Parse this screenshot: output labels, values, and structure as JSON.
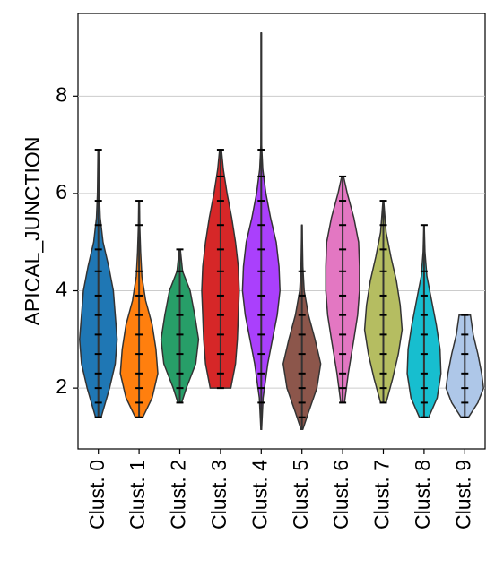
{
  "chart_data": {
    "type": "violin",
    "ylabel": "APICAL_JUNCTION",
    "categories": [
      "Clust. 0",
      "Clust. 1",
      "Clust. 2",
      "Clust. 3",
      "Clust. 4",
      "Clust. 5",
      "Clust. 6",
      "Clust. 7",
      "Clust. 8",
      "Clust. 9"
    ],
    "ylim": [
      0.75,
      9.7
    ],
    "yticks": [
      2,
      4,
      6,
      8
    ],
    "grid": true,
    "violins": [
      {
        "color": "#1f77b4",
        "levels": [
          1.4,
          2,
          2.5,
          3,
          3.5,
          4,
          4.5,
          5,
          5.5,
          6,
          6.9
        ],
        "density": [
          0.15,
          0.6,
          0.9,
          1.0,
          0.9,
          0.8,
          0.55,
          0.25,
          0.1,
          0.05,
          0.02
        ],
        "points": [
          1.4,
          1.7,
          2.0,
          2.3,
          2.7,
          3.1,
          3.5,
          3.9,
          4.4,
          4.85,
          5.35,
          5.85,
          6.9
        ]
      },
      {
        "color": "#ff7f0e",
        "levels": [
          1.4,
          1.8,
          2.3,
          2.8,
          3.3,
          3.8,
          4.3,
          4.8,
          5.3,
          5.85
        ],
        "density": [
          0.2,
          0.7,
          1.0,
          0.9,
          0.7,
          0.35,
          0.15,
          0.08,
          0.04,
          0.02
        ],
        "points": [
          1.4,
          1.7,
          2.0,
          2.3,
          2.7,
          3.1,
          3.5,
          3.9,
          4.4,
          5.35,
          5.85
        ]
      },
      {
        "color": "#279e68",
        "levels": [
          1.7,
          2.0,
          2.5,
          3.0,
          3.5,
          4.0,
          4.4,
          4.85
        ],
        "density": [
          0.1,
          0.35,
          0.85,
          1.0,
          0.8,
          0.55,
          0.15,
          0.03
        ],
        "points": [
          1.7,
          2.0,
          2.3,
          2.7,
          3.1,
          3.5,
          3.9,
          4.4,
          4.85
        ]
      },
      {
        "color": "#d62728",
        "levels": [
          2.0,
          2.5,
          3,
          3.5,
          4,
          4.5,
          5,
          5.5,
          6,
          6.5,
          6.9
        ],
        "density": [
          0.55,
          0.8,
          0.9,
          0.95,
          1.0,
          0.95,
          0.8,
          0.6,
          0.35,
          0.15,
          0.05
        ],
        "points": [
          2.0,
          2.3,
          2.7,
          3.1,
          3.5,
          3.9,
          4.4,
          4.85,
          5.35,
          5.85,
          6.35,
          6.9
        ]
      },
      {
        "color": "#aa40fc",
        "levels": [
          1.15,
          1.8,
          2.5,
          3,
          3.5,
          4,
          4.5,
          5,
          5.5,
          6,
          6.5,
          7,
          8,
          9.3
        ],
        "density": [
          0.02,
          0.1,
          0.35,
          0.6,
          0.85,
          1.0,
          0.95,
          0.8,
          0.5,
          0.25,
          0.08,
          0.02,
          0.01,
          0.01
        ],
        "points": [
          1.7,
          2.0,
          2.3,
          2.7,
          3.1,
          3.5,
          3.9,
          4.4,
          4.85,
          5.35,
          5.85,
          6.35,
          6.9
        ]
      },
      {
        "color": "#8c564b",
        "levels": [
          1.15,
          1.5,
          2,
          2.5,
          3,
          3.5,
          4,
          4.5,
          5.35
        ],
        "density": [
          0.05,
          0.35,
          0.8,
          1.0,
          0.7,
          0.35,
          0.12,
          0.05,
          0.01
        ],
        "points": [
          1.4,
          1.7,
          2.0,
          2.3,
          2.7,
          3.1,
          3.5,
          3.9,
          4.4
        ]
      },
      {
        "color": "#e377c2",
        "levels": [
          1.7,
          2.3,
          3,
          3.5,
          4,
          4.5,
          5,
          5.5,
          6,
          6.35
        ],
        "density": [
          0.1,
          0.3,
          0.6,
          0.8,
          0.9,
          0.9,
          0.85,
          0.6,
          0.25,
          0.05
        ],
        "points": [
          1.7,
          2.0,
          2.3,
          2.7,
          3.1,
          3.5,
          3.9,
          4.4,
          4.85,
          5.35,
          5.85,
          6.35
        ]
      },
      {
        "color": "#b5bd61",
        "levels": [
          1.7,
          2.2,
          2.7,
          3.2,
          3.7,
          4.2,
          4.7,
          5.2,
          5.85
        ],
        "density": [
          0.15,
          0.5,
          0.8,
          1.0,
          0.9,
          0.7,
          0.4,
          0.15,
          0.02
        ],
        "points": [
          1.7,
          2.0,
          2.3,
          2.7,
          3.1,
          3.5,
          3.9,
          4.4,
          4.85,
          5.35,
          5.85
        ]
      },
      {
        "color": "#17becf",
        "levels": [
          1.4,
          1.8,
          2.3,
          2.8,
          3.3,
          3.8,
          4.3,
          4.8,
          5.35
        ],
        "density": [
          0.25,
          0.7,
          0.9,
          0.85,
          0.65,
          0.4,
          0.15,
          0.05,
          0.01
        ],
        "points": [
          1.4,
          1.7,
          2.0,
          2.3,
          2.7,
          3.1,
          3.5,
          3.9,
          4.4,
          5.35
        ]
      },
      {
        "color": "#aec7e8",
        "levels": [
          1.4,
          1.7,
          2.0,
          2.3,
          2.7,
          3.1,
          3.5
        ],
        "density": [
          0.2,
          0.7,
          1.0,
          0.9,
          0.7,
          0.45,
          0.3
        ],
        "points": [
          1.4,
          1.7,
          2.0,
          2.3,
          2.7,
          3.1,
          3.5
        ]
      }
    ]
  }
}
